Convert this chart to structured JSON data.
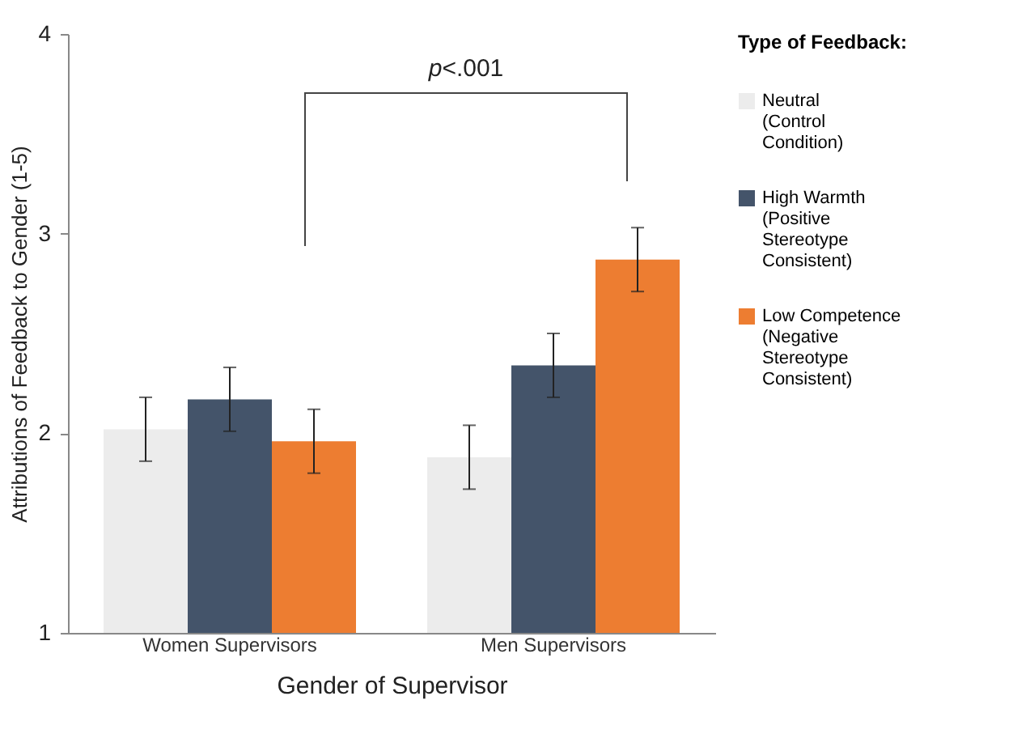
{
  "chart_data": {
    "type": "bar",
    "xlabel": "Gender of Supervisor",
    "ylabel": "Attributions of Feedback to Gender (1-5)",
    "legend_title": "Type of Feedback:",
    "legend": "right",
    "grid": false,
    "categories": [
      "Women Supervisors",
      "Men Supervisors"
    ],
    "series": [
      {
        "name": "Neutral (Control Condition)",
        "color": "#ececec",
        "values": [
          2.02,
          1.88
        ],
        "errors": [
          0.16,
          0.16
        ]
      },
      {
        "name": "High Warmth (Positive Stereotype Consistent)",
        "color": "#44546a",
        "values": [
          2.17,
          2.34
        ],
        "errors": [
          0.16,
          0.16
        ]
      },
      {
        "name": "Low Competence (Negative Stereotype Consistent)",
        "color": "#ed7d31",
        "values": [
          1.96,
          2.87
        ],
        "errors": [
          0.16,
          0.16
        ]
      }
    ],
    "ylim": [
      1,
      4
    ],
    "yticks": [
      1,
      2,
      3,
      4
    ],
    "annotations": [
      "p<.001"
    ]
  }
}
